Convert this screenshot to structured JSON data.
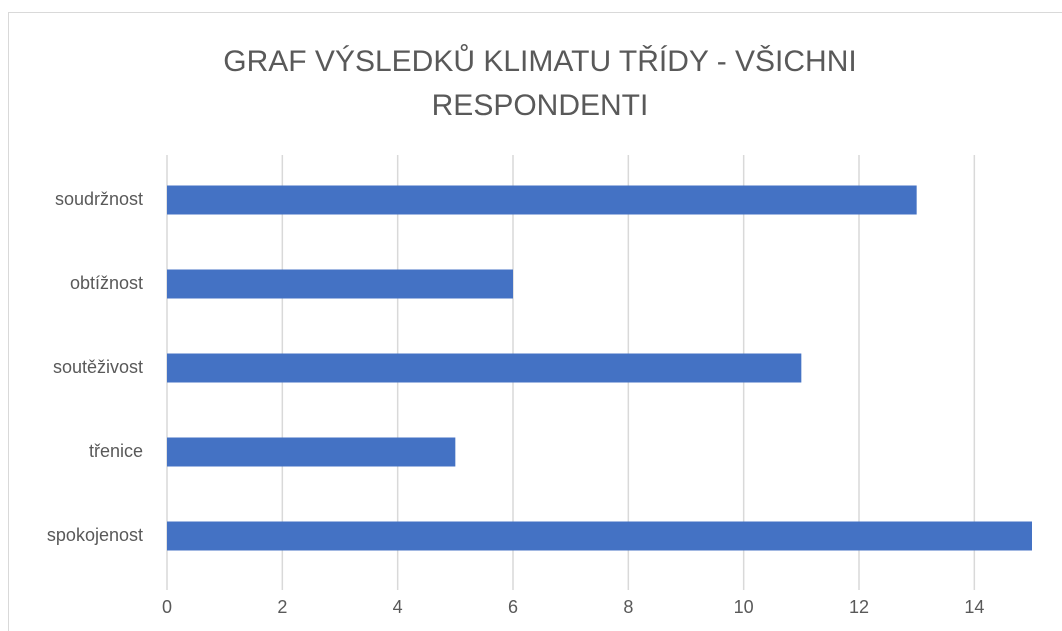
{
  "chart_data": {
    "type": "hbar",
    "title": "GRAF VÝSLEDKŮ KLIMATU TŘÍDY - VŠICHNI RESPONDENTI",
    "categories": [
      "soudržnost",
      "obtížnost",
      "soutěživost",
      "třenice",
      "spokojenost"
    ],
    "values": [
      13,
      6,
      11,
      5,
      15
    ],
    "color": "#4472c4",
    "xlim": [
      0,
      15
    ],
    "xticks": [
      0,
      2,
      4,
      6,
      8,
      10,
      12,
      14
    ],
    "grid": true
  }
}
